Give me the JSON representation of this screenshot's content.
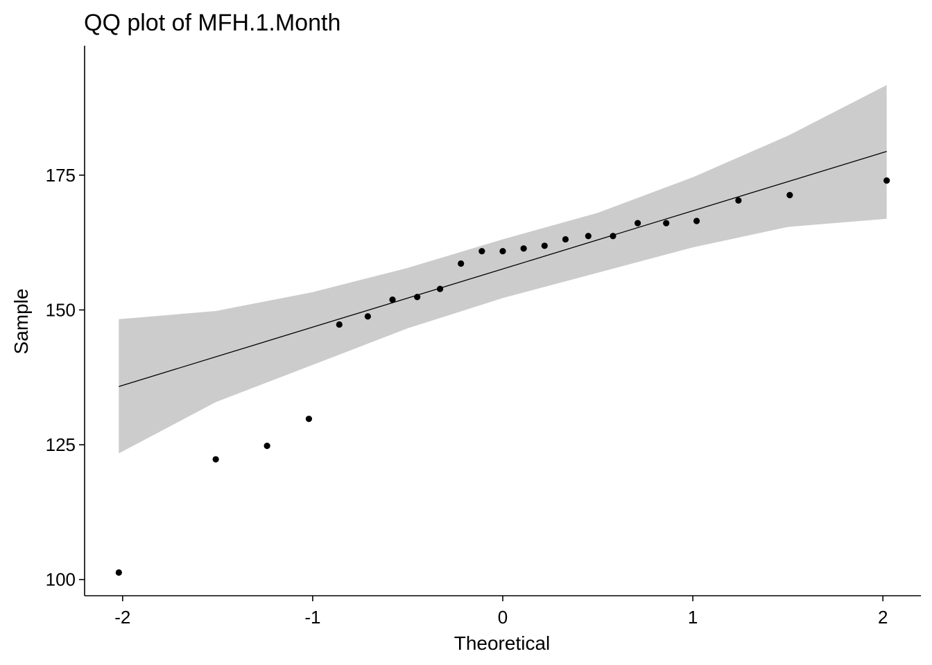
{
  "chart_data": {
    "type": "scatter",
    "title": "QQ plot of MFH.1.Month",
    "xlabel": "Theoretical",
    "ylabel": "Sample",
    "xlim": [
      -2.2,
      2.2
    ],
    "ylim": [
      97,
      199
    ],
    "x_ticks": [
      -2,
      -1,
      0,
      1,
      2
    ],
    "x_tick_labels": [
      "-2",
      "-1",
      "0",
      "1",
      "2"
    ],
    "y_ticks": [
      100,
      125,
      150,
      175
    ],
    "y_tick_labels": [
      "100",
      "125",
      "150",
      "175"
    ],
    "grid": false,
    "legend": "none",
    "points": {
      "x": [
        -2.02,
        -1.51,
        -1.24,
        -1.02,
        -0.86,
        -0.71,
        -0.58,
        -0.45,
        -0.33,
        -0.22,
        -0.11,
        0.0,
        0.11,
        0.22,
        0.33,
        0.45,
        0.58,
        0.71,
        0.86,
        1.02,
        1.24,
        1.51,
        2.02
      ],
      "y": [
        101.3,
        122.3,
        124.8,
        129.8,
        147.3,
        148.8,
        151.9,
        152.4,
        153.9,
        158.6,
        160.9,
        160.9,
        161.4,
        161.9,
        163.1,
        163.7,
        163.7,
        166.1,
        166.1,
        166.5,
        170.3,
        171.3,
        174.0
      ]
    },
    "reference_line": {
      "x": [
        -2.02,
        2.02
      ],
      "y": [
        135.8,
        179.4
      ]
    },
    "confidence_band": {
      "x": [
        -2.02,
        -1.51,
        -1.0,
        -0.5,
        0.0,
        0.5,
        1.0,
        1.5,
        2.02
      ],
      "upper": [
        148.3,
        149.8,
        153.3,
        157.8,
        163.1,
        168.0,
        174.6,
        182.3,
        191.7
      ],
      "lower": [
        123.4,
        132.9,
        139.8,
        146.6,
        152.2,
        156.9,
        161.6,
        165.4,
        166.9
      ]
    },
    "colors": {
      "points": "#000000",
      "line": "#000000",
      "band": "#cccccc",
      "axis": "#000000"
    }
  }
}
